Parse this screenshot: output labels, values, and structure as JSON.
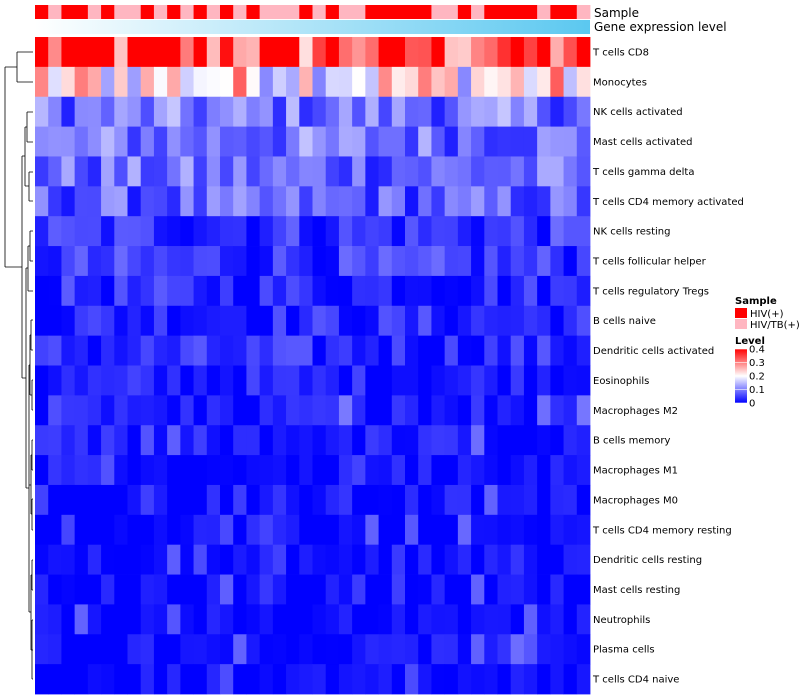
{
  "chart_data": {
    "type": "heatmap",
    "columns": 42,
    "row_labels": [
      "T cells CD8",
      "Monocytes",
      "NK cells activated",
      "Mast cells activated",
      "T cells gamma delta",
      "T cells CD4 memory activated",
      "NK cells resting",
      "T cells follicular helper",
      "T cells regulatory  Tregs",
      "B cells naive",
      "Dendritic cells activated",
      "Eosinophils",
      "Macrophages M2",
      "B cells memory",
      "Macrophages M1",
      "Macrophages M0",
      "T cells CD4 memory resting",
      "Dendritic cells resting",
      "Mast cells resting",
      "Neutrophils",
      "Plasma cells",
      "T cells CD4 naive"
    ],
    "row_base_levels": [
      0.36,
      0.22,
      0.09,
      0.09,
      0.08,
      0.07,
      0.04,
      0.04,
      0.03,
      0.03,
      0.03,
      0.02,
      0.015,
      0.015,
      0.01,
      0.01,
      0.005,
      0.005,
      0.003,
      0.002,
      0.008,
      0.002
    ],
    "annotation_sample": [
      "HIV(+)",
      "HIV/TB(+)",
      "HIV(+)",
      "HIV(+)",
      "HIV/TB(+)",
      "HIV(+)",
      "HIV/TB(+)",
      "HIV/TB(+)",
      "HIV(+)",
      "HIV/TB(+)",
      "HIV(+)",
      "HIV/TB(+)",
      "HIV(+)",
      "HIV/TB(+)",
      "HIV(+)",
      "HIV/TB(+)",
      "HIV(+)",
      "HIV/TB(+)",
      "HIV/TB(+)",
      "HIV/TB(+)",
      "HIV(+)",
      "HIV/TB(+)",
      "HIV(+)",
      "HIV/TB(+)",
      "HIV/TB(+)",
      "HIV(+)",
      "HIV(+)",
      "HIV(+)",
      "HIV(+)",
      "HIV(+)",
      "HIV/TB(+)",
      "HIV/TB(+)",
      "HIV(+)",
      "HIV/TB(+)",
      "HIV(+)",
      "HIV(+)",
      "HIV(+)",
      "HIV(+)",
      "HIV/TB(+)",
      "HIV(+)",
      "HIV(+)",
      "HIV/TB(+)"
    ],
    "annotation_labels": {
      "sample": "Sample",
      "gene_expression": "Gene expression level"
    },
    "legend_sample": {
      "title": "Sample",
      "items": [
        {
          "label": "HIV(+)",
          "color": "#ff0000"
        },
        {
          "label": "HIV/TB(+)",
          "color": "#ffb6c1"
        }
      ]
    },
    "legend_level": {
      "title": "Level",
      "ticks": [
        0.4,
        0.3,
        0.2,
        0.1,
        0
      ],
      "tick_labels": [
        "0.4",
        "0.3",
        "0.2",
        "0.1",
        "0"
      ],
      "range": [
        0,
        0.4
      ],
      "colors": {
        "low": "#0000ff",
        "mid": "#ffffff",
        "high": "#ff0000"
      }
    },
    "gene_expression_color_from": "#ffffff",
    "gene_expression_color_to": "#5bc8f0",
    "dendrogram": "hierarchical clustering of rows (left side)"
  }
}
